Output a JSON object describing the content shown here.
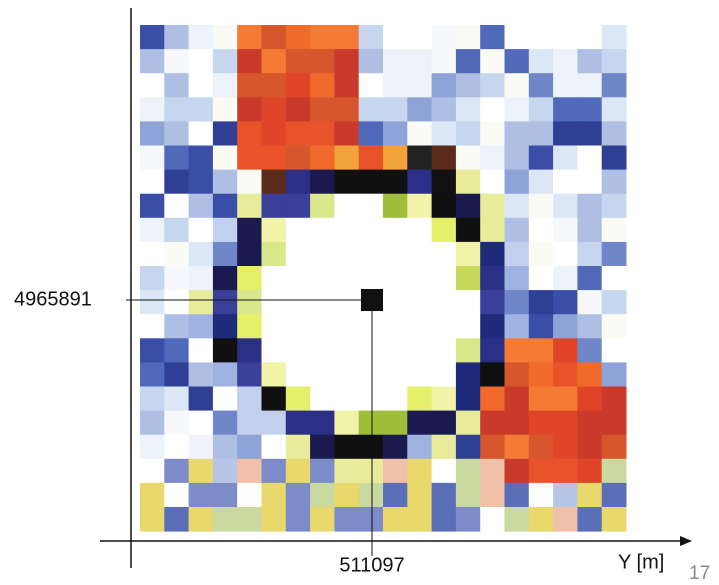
{
  "figure": {
    "northing_label": "4965891",
    "easting_label": "511097",
    "axis_title": "Y [m]",
    "page_number": "17"
  }
}
